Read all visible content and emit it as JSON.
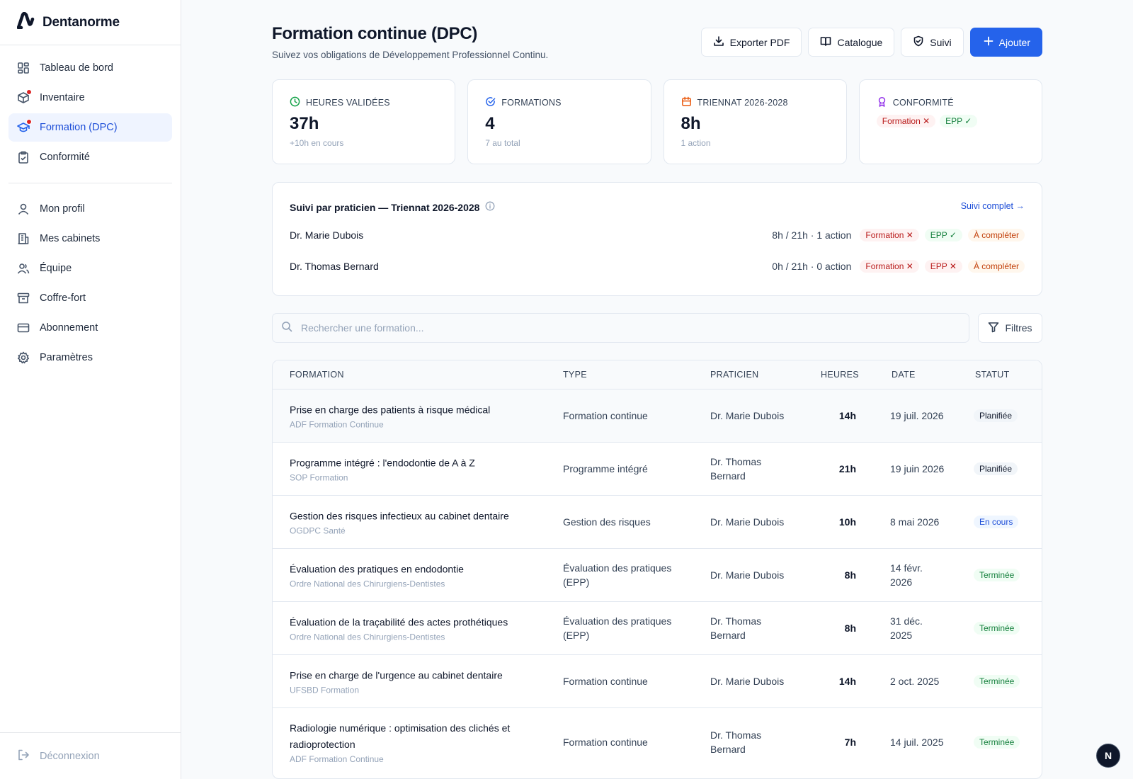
{
  "brand": {
    "name": "Dentanorme"
  },
  "nav": {
    "items": [
      {
        "label": "Tableau de bord",
        "icon": "dashboard-icon"
      },
      {
        "label": "Inventaire",
        "icon": "box-icon"
      },
      {
        "label": "Formation (DPC)",
        "icon": "graduation-cap-icon"
      },
      {
        "label": "Conformité",
        "icon": "clipboard-check-icon"
      }
    ],
    "items2": [
      {
        "label": "Mon profil",
        "icon": "user-icon"
      },
      {
        "label": "Mes cabinets",
        "icon": "building-icon"
      },
      {
        "label": "Équipe",
        "icon": "users-icon"
      },
      {
        "label": "Coffre-fort",
        "icon": "archive-icon"
      },
      {
        "label": "Abonnement",
        "icon": "credit-card-icon"
      },
      {
        "label": "Paramètres",
        "icon": "gear-icon"
      }
    ],
    "logout": "Déconnexion"
  },
  "header": {
    "title": "Formation continue (DPC)",
    "subtitle": "Suivez vos obligations de Développement Professionnel Continu.",
    "export": "Exporter PDF",
    "catalogue": "Catalogue",
    "suivi": "Suivi",
    "add": "Ajouter"
  },
  "stats": [
    {
      "label": "HEURES VALIDÉES",
      "value": "37h",
      "sub": "+10h en cours",
      "color": "#16a34a"
    },
    {
      "label": "FORMATIONS",
      "value": "4",
      "sub": "7 au total",
      "color": "#2563eb"
    },
    {
      "label": "TRIENNAT 2026-2028",
      "value": "8h",
      "sub": "1 action",
      "color": "#ea580c"
    },
    {
      "label": "CONFORMITÉ",
      "pill1": "Formation ✕",
      "pill2": "EPP ✓",
      "color": "#9333ea"
    }
  ],
  "suivi": {
    "title": "Suivi par praticien — Triennat 2026-2028",
    "link": "Suivi complet →",
    "rows": [
      {
        "name": "Dr. Marie Dubois",
        "hours": "8h / 21h · 1 action",
        "formation": "Formation ✕",
        "epp": "EPP ✓",
        "status": "À compléter"
      },
      {
        "name": "Dr. Thomas Bernard",
        "hours": "0h / 21h · 0 action",
        "formation": "Formation ✕",
        "epp": "EPP ✕",
        "status": "À compléter"
      }
    ]
  },
  "search": {
    "placeholder": "Rechercher une formation...",
    "filters": "Filtres"
  },
  "table": {
    "headers": {
      "formation": "FORMATION",
      "type": "TYPE",
      "praticien": "PRATICIEN",
      "heures": "HEURES",
      "date": "DATE",
      "statut": "STATUT"
    },
    "rows": [
      {
        "title": "Prise en charge des patients à risque médical",
        "org": "ADF Formation Continue",
        "type": "Formation continue",
        "praticien": "Dr. Marie Dubois",
        "heures": "14h",
        "date": "19 juil. 2026",
        "statut": "Planifiée"
      },
      {
        "title": "Programme intégré : l'endodontie de A à Z",
        "org": "SOP Formation",
        "type": "Programme intégré",
        "praticien": "Dr. Thomas Bernard",
        "heures": "21h",
        "date": "19 juin 2026",
        "statut": "Planifiée"
      },
      {
        "title": "Gestion des risques infectieux au cabinet dentaire",
        "org": "OGDPC Santé",
        "type": "Gestion des risques",
        "praticien": "Dr. Marie Dubois",
        "heures": "10h",
        "date": "8 mai 2026",
        "statut": "En cours"
      },
      {
        "title": "Évaluation des pratiques en endodontie",
        "org": "Ordre National des Chirurgiens-Dentistes",
        "type": "Évaluation des pratiques (EPP)",
        "praticien": "Dr. Marie Dubois",
        "heures": "8h",
        "date": "14 févr. 2026",
        "statut": "Terminée"
      },
      {
        "title": "Évaluation de la traçabilité des actes prothétiques",
        "org": "Ordre National des Chirurgiens-Dentistes",
        "type": "Évaluation des pratiques (EPP)",
        "praticien": "Dr. Thomas Bernard",
        "heures": "8h",
        "date": "31 déc. 2025",
        "statut": "Terminée"
      },
      {
        "title": "Prise en charge de l'urgence au cabinet dentaire",
        "org": "UFSBD Formation",
        "type": "Formation continue",
        "praticien": "Dr. Marie Dubois",
        "heures": "14h",
        "date": "2 oct. 2025",
        "statut": "Terminée"
      },
      {
        "title": "Radiologie numérique : optimisation des clichés et radioprotection",
        "org": "ADF Formation Continue",
        "type": "Formation continue",
        "praticien": "Dr. Thomas Bernard",
        "heures": "7h",
        "date": "14 juil. 2025",
        "statut": "Terminée"
      }
    ]
  },
  "fab": {
    "label": "N"
  }
}
